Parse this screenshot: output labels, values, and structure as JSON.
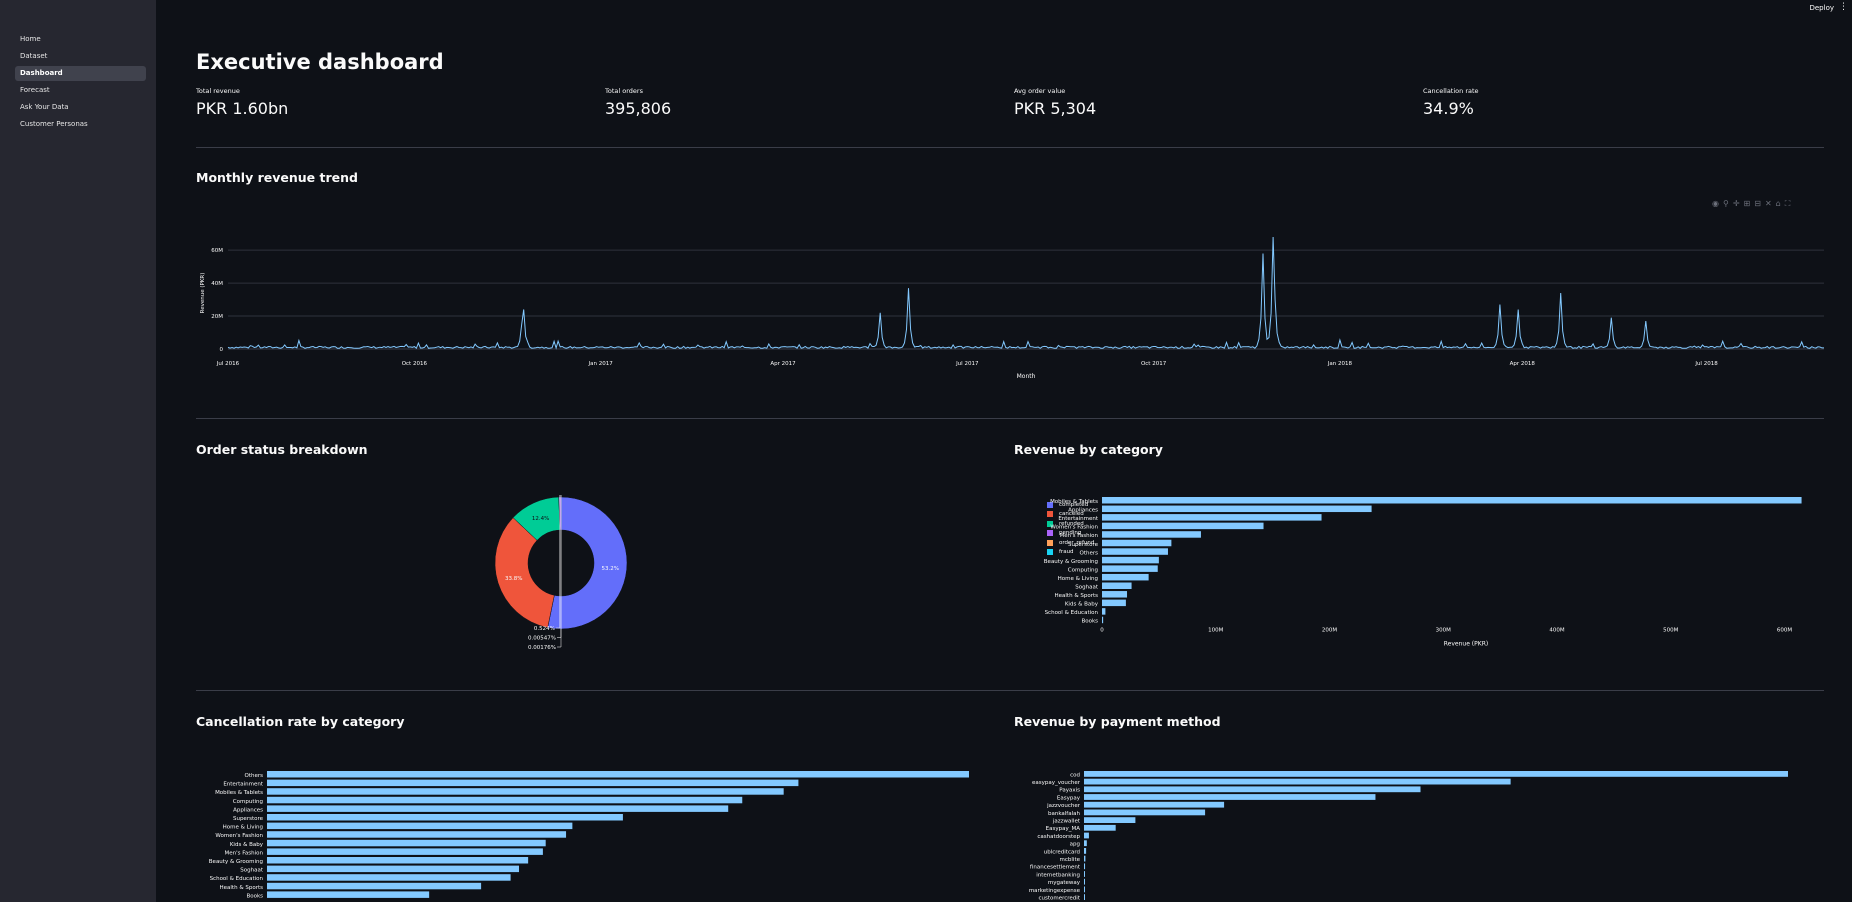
{
  "topbar": {
    "deploy_label": "Deploy",
    "menu_icon": "kebab-icon"
  },
  "sidebar": {
    "items": [
      {
        "label": "Home"
      },
      {
        "label": "Dataset"
      },
      {
        "label": "Dashboard",
        "active": true
      },
      {
        "label": "Forecast"
      },
      {
        "label": "Ask Your Data"
      },
      {
        "label": "Customer Personas"
      }
    ]
  },
  "page": {
    "title": "Executive dashboard",
    "metrics": [
      {
        "label": "Total revenue",
        "value": "PKR 1.60bn"
      },
      {
        "label": "Total orders",
        "value": "395,806"
      },
      {
        "label": "Avg order value",
        "value": "PKR 5,304"
      },
      {
        "label": "Cancellation rate",
        "value": "34.9%"
      }
    ],
    "sections": {
      "trend": "Monthly revenue trend",
      "status": "Order status breakdown",
      "category_revenue": "Revenue by category",
      "cancellation": "Cancellation rate by category",
      "payment": "Revenue by payment method"
    },
    "toolbar_icons": [
      "camera-icon",
      "zoom-icon",
      "pan-icon",
      "zoom-in-icon",
      "zoom-out-icon",
      "autoscale-icon",
      "reset-axes-icon",
      "fullscreen-icon"
    ]
  },
  "colors": {
    "accent": "#83c9ff",
    "background": "#0e1117",
    "sidebar": "#262730",
    "completed": "#636efa",
    "canceled": "#ef553b",
    "refunded": "#00cc96",
    "pending": "#ab63fa",
    "order_refunded": "#ffa15a",
    "fraud": "#19d3f3"
  },
  "chart_data": [
    {
      "type": "line",
      "ylabel": "Revenue (PKR)",
      "xlabel": "Month",
      "x_ticks": [
        "Jul 2016",
        "Oct 2016",
        "Jan 2017",
        "Apr 2017",
        "Jul 2017",
        "Oct 2017",
        "Jan 2018",
        "Apr 2018",
        "Jul 2018"
      ],
      "y_ticks": [
        "0",
        "20M",
        "40M",
        "60M"
      ],
      "ylim": [
        0,
        68000000
      ],
      "x_range": [
        "2016-07-01",
        "2018-08-28"
      ],
      "series": [
        {
          "peaks": [
            {
              "date": "2016-11-24",
              "value": 24000000
            },
            {
              "date": "2016-11-23",
              "value": 15000000
            },
            {
              "date": "2017-05-19",
              "value": 22000000
            },
            {
              "date": "2017-06-02",
              "value": 37000000
            },
            {
              "date": "2017-11-24",
              "value": 58000000
            },
            {
              "date": "2017-11-29",
              "value": 68000000
            },
            {
              "date": "2017-11-30",
              "value": 30000000
            },
            {
              "date": "2018-03-21",
              "value": 27000000
            },
            {
              "date": "2018-04-20",
              "value": 34000000
            },
            {
              "date": "2018-03-30",
              "value": 24000000
            },
            {
              "date": "2018-05-15",
              "value": 19000000
            },
            {
              "date": "2018-06-01",
              "value": 17000000
            }
          ]
        }
      ]
    },
    {
      "type": "pie",
      "hole": true,
      "labels": [
        "completed",
        "canceled",
        "refunded",
        "pending",
        "order_refund",
        "fraud"
      ],
      "slice_labels": [
        "53.2%",
        "33.8%",
        "12.4%",
        "0.524%",
        "0.00547%",
        "0.00176%"
      ],
      "values": [
        53.2,
        33.8,
        12.4,
        0.524,
        0.00547,
        0.00176
      ]
    },
    {
      "type": "bar",
      "orientation": "h",
      "categories": [
        "Mobiles & Tablets",
        "Appliances",
        "Entertainment",
        "Women's Fashion",
        "Men's Fashion",
        "Superstore",
        "Others",
        "Beauty & Grooming",
        "Computing",
        "Home & Living",
        "Soghaat",
        "Health & Sports",
        "Kids & Baby",
        "School & Education",
        "Books"
      ],
      "values": [
        615000000,
        237000000,
        193000000,
        142000000,
        87000000,
        61000000,
        58000000,
        50000000,
        49000000,
        41000000,
        26000000,
        22000000,
        21000000,
        3000000,
        1000000
      ],
      "x_ticks": [
        "0",
        "100M",
        "200M",
        "300M",
        "400M",
        "500M",
        "600M"
      ],
      "xlim": [
        0,
        640000000
      ],
      "xlabel": "Revenue (PKR)"
    },
    {
      "type": "bar",
      "orientation": "h",
      "categories": [
        "Others",
        "Entertainment",
        "Mobiles & Tablets",
        "Computing",
        "Appliances",
        "Superstore",
        "Home & Living",
        "Women's Fashion",
        "Kids & Baby",
        "Men's Fashion",
        "Beauty & Grooming",
        "Soghaat",
        "School & Education",
        "Health & Sports",
        "Books"
      ],
      "values": [
        1.0,
        0.757,
        0.736,
        0.677,
        0.657,
        0.507,
        0.435,
        0.426,
        0.397,
        0.393,
        0.372,
        0.359,
        0.347,
        0.305,
        0.231
      ]
    },
    {
      "type": "bar",
      "orientation": "h",
      "categories": [
        "cod",
        "easypay_voucher",
        "Payaxis",
        "Easypay",
        "jazzvoucher",
        "bankalfalah",
        "jazzwallet",
        "Easypay_MA",
        "cashatdoorstep",
        "apg",
        "ublcreditcard",
        "mcblite",
        "financesettlement",
        "internetbanking",
        "mygateway",
        "marketingexpense",
        "customercredit"
      ],
      "values": [
        1.0,
        0.606,
        0.478,
        0.414,
        0.199,
        0.172,
        0.073,
        0.045,
        0.007,
        0.004,
        0.003,
        0.002,
        0.0015,
        0.001,
        0.0008,
        0.0005,
        0.0003
      ]
    }
  ]
}
